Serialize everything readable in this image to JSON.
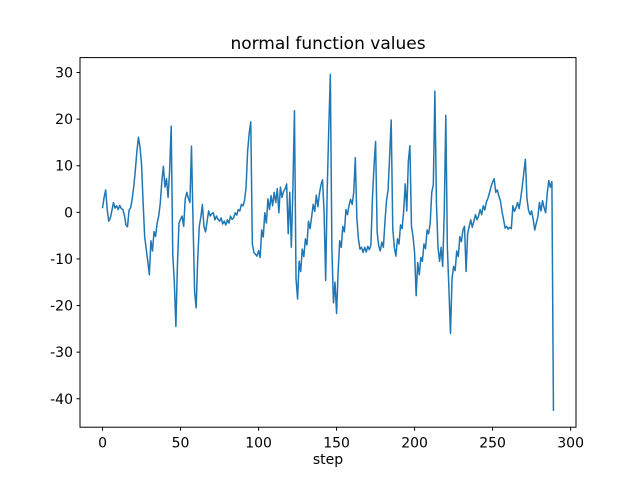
{
  "figure": {
    "background": "#ffffff",
    "spine_color": "#000000",
    "text_color": "#000000"
  },
  "chart_data": {
    "type": "line",
    "title": "normal function values",
    "xlabel": "step",
    "ylabel": "",
    "grid": false,
    "legend": null,
    "xlim": [
      -14.45,
      303.45
    ],
    "ylim": [
      -46.1,
      33.2
    ],
    "xticks": [
      0,
      50,
      100,
      150,
      200,
      250,
      300
    ],
    "yticks": [
      30,
      20,
      10,
      0,
      -10,
      -20,
      -30,
      -40
    ],
    "x_start": 0,
    "x_step": 1,
    "series": [
      {
        "name": "normal function values",
        "color": "#1f77b4",
        "values": [
          1.0,
          3.2,
          4.8,
          0.5,
          -1.9,
          -1.2,
          0.4,
          2.1,
          0.9,
          1.4,
          0.6,
          1.5,
          0.8,
          0.6,
          -0.6,
          -2.7,
          -3.1,
          0.5,
          1.0,
          2.9,
          5.5,
          9.0,
          13.0,
          16.1,
          14.0,
          10.3,
          2.1,
          -5.2,
          -7.9,
          -10.5,
          -13.4,
          -6.1,
          -8.3,
          -4.1,
          -5.2,
          -2.3,
          -0.8,
          2.0,
          6.6,
          9.9,
          5.4,
          7.2,
          3.2,
          9.0,
          18.5,
          -9.0,
          -15.0,
          -24.5,
          -11.2,
          -2.3,
          -1.5,
          -0.8,
          -3.0,
          2.9,
          4.3,
          3.0,
          2.1,
          14.2,
          -2.0,
          -17.0,
          -20.5,
          -10.0,
          -3.0,
          -1.0,
          1.7,
          -3.0,
          -4.2,
          -2.0,
          0.3,
          -0.8,
          -0.3,
          -0.1,
          -1.6,
          -0.8,
          -1.5,
          -1.9,
          -1.2,
          -2.5,
          -1.9,
          -2.7,
          -1.6,
          -2.3,
          -0.8,
          -1.5,
          -1.2,
          -0.1,
          -0.6,
          0.6,
          0.3,
          1.7,
          1.4,
          2.5,
          5.5,
          13.2,
          17.0,
          19.4,
          -6.8,
          -8.6,
          -9.0,
          -9.4,
          -8.2,
          -9.7,
          -3.8,
          -5.3,
          -0.1,
          -2.3,
          2.9,
          0.6,
          3.6,
          1.4,
          4.3,
          2.1,
          5.1,
          -0.1,
          5.4,
          3.2,
          4.5,
          5.0,
          6.1,
          -4.6,
          4.3,
          -7.5,
          5.0,
          21.8,
          -14.2,
          -18.6,
          -10.5,
          -12.7,
          -7.9,
          -9.5,
          -5.7,
          -7.0,
          -1.9,
          -3.5,
          -1.0,
          1.7,
          0.2,
          3.7,
          1.2,
          4.0,
          5.9,
          7.0,
          0.0,
          -14.6,
          5.0,
          18.0,
          29.6,
          -8.0,
          -19.4,
          -15.0,
          -21.7,
          -12.7,
          -6.1,
          -7.5,
          -3.0,
          -4.2,
          0.6,
          -0.5,
          1.5,
          2.8,
          1.7,
          4.3,
          11.7,
          -1.2,
          -5.7,
          -7.9,
          -7.5,
          -8.6,
          -7.5,
          -8.5,
          -7.3,
          -8.0,
          -7.0,
          3.2,
          10.0,
          15.2,
          -4.2,
          -7.2,
          -8.3,
          -6.4,
          -7.5,
          -2.0,
          2.5,
          4.8,
          12.0,
          19.8,
          -3.4,
          -7.5,
          -9.4,
          -5.7,
          -6.8,
          -2.7,
          -3.5,
          0.3,
          6.1,
          0.3,
          11.0,
          14.3,
          -3.0,
          -5.2,
          -8.6,
          -17.9,
          -10.8,
          -13.4,
          -9.7,
          -10.5,
          -6.8,
          -7.8,
          -3.8,
          -4.6,
          -2.3,
          4.3,
          5.9,
          26.0,
          2.0,
          -7.5,
          -10.5,
          -7.5,
          -11.6,
          -0.1,
          20.8,
          -7.5,
          -16.4,
          -26.0,
          -14.2,
          -11.6,
          -12.5,
          -8.3,
          -9.5,
          -5.2,
          -6.3,
          -3.8,
          -3.0,
          -12.7,
          -4.6,
          -3.0,
          -1.6,
          -3.2,
          -1.9,
          -0.5,
          -1.6,
          -0.8,
          0.6,
          -0.5,
          1.4,
          0.5,
          2.2,
          3.0,
          4.2,
          5.5,
          6.5,
          7.2,
          4.3,
          4.8,
          3.5,
          2.5,
          0.2,
          -1.5,
          -3.4,
          -3.0,
          -3.6,
          -3.2,
          -3.5,
          1.4,
          0.2,
          1.0,
          2.1,
          0.8,
          3.0,
          5.5,
          8.5,
          11.4,
          3.0,
          0.5,
          -0.5,
          0.3,
          -1.5,
          -3.8,
          -2.3,
          -1.0,
          2.1,
          0.3,
          2.5,
          1.0,
          -0.1,
          4.0,
          6.8,
          5.4,
          6.6,
          -42.5
        ]
      }
    ]
  }
}
